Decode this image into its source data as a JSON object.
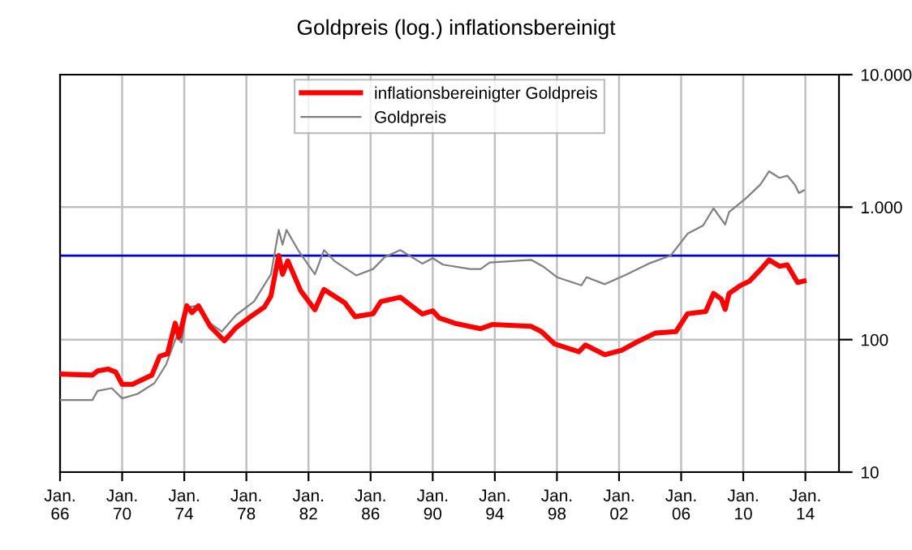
{
  "chart_data": {
    "type": "line",
    "title": "Goldpreis (log.) inflationsbereinigt",
    "series": [
      {
        "name": "inflationsbereinigter Goldpreis",
        "color": "#ff0000",
        "x": [
          "1966-01",
          "1968-02",
          "1968-06",
          "1969-02",
          "1969-08",
          "1970-01",
          "1970-09",
          "1971-12",
          "1972-06",
          "1972-12",
          "1973-06",
          "1973-09",
          "1974-03",
          "1974-07",
          "1974-12",
          "1975-09",
          "1976-08",
          "1977-05",
          "1978-03",
          "1979-03",
          "1979-08",
          "1980-02",
          "1980-05",
          "1980-09",
          "1981-07",
          "1982-06",
          "1983-01",
          "1984-05",
          "1985-01",
          "1986-03",
          "1986-09",
          "1987-12",
          "1989-05",
          "1990-01",
          "1990-06",
          "1991-06",
          "1993-02",
          "1993-11",
          "1996-05",
          "1997-01",
          "1997-11",
          "1999-06",
          "1999-11",
          "2001-02",
          "2002-03",
          "2003-03",
          "2004-05",
          "2005-09",
          "2006-06",
          "2007-08",
          "2008-02",
          "2008-08",
          "2008-11",
          "2009-02",
          "2009-11",
          "2010-06",
          "2011-02",
          "2011-09",
          "2012-05",
          "2012-11",
          "2013-02",
          "2013-07",
          "2013-12"
        ],
        "values": [
          55,
          54,
          58,
          60,
          57,
          46,
          46,
          54,
          75,
          78,
          133,
          104,
          180,
          160,
          180,
          126,
          98,
          123,
          146,
          176,
          213,
          431,
          311,
          393,
          234,
          168,
          239,
          190,
          149,
          157,
          194,
          209,
          156,
          165,
          146,
          133,
          121,
          130,
          126,
          115,
          93,
          81,
          91,
          77,
          83,
          96,
          112,
          115,
          157,
          163,
          223,
          203,
          169,
          223,
          257,
          277,
          335,
          400,
          358,
          367,
          326,
          270,
          277
        ]
      },
      {
        "name": "Goldpreis",
        "color": "#808080",
        "x": [
          "1966-01",
          "1968-02",
          "1968-06",
          "1969-05",
          "1970-01",
          "1971-01",
          "1972-02",
          "1972-11",
          "1973-07",
          "1973-11",
          "1974-03",
          "1974-12",
          "1975-09",
          "1976-06",
          "1977-05",
          "1978-07",
          "1979-08",
          "1980-02",
          "1980-05",
          "1980-08",
          "1981-05",
          "1982-06",
          "1983-01",
          "1983-09",
          "1985-02",
          "1986-03",
          "1986-12",
          "1987-12",
          "1989-05",
          "1990-01",
          "1990-09",
          "1992-06",
          "1993-02",
          "1993-09",
          "1996-05",
          "1997-02",
          "1998-01",
          "1999-08",
          "1999-12",
          "2001-02",
          "2002-07",
          "2003-12",
          "2005-05",
          "2006-06",
          "2007-06",
          "2008-02",
          "2008-11",
          "2009-02",
          "2010-03",
          "2011-02",
          "2011-09",
          "2012-05",
          "2012-11",
          "2013-05",
          "2013-08",
          "2013-12"
        ],
        "values": [
          35,
          35,
          41,
          43,
          36,
          39,
          47,
          65,
          105,
          95,
          176,
          180,
          133,
          115,
          153,
          194,
          311,
          673,
          521,
          673,
          474,
          311,
          474,
          393,
          305,
          341,
          420,
          474,
          375,
          412,
          368,
          341,
          341,
          382,
          400,
          358,
          296,
          257,
          296,
          262,
          311,
          375,
          431,
          630,
          726,
          980,
          739,
          918,
          1163,
          1472,
          1862,
          1664,
          1727,
          1472,
          1278,
          1340
        ]
      }
    ],
    "log": "y",
    "xlim": [
      "1966-01-01",
      "2016-03-01"
    ],
    "ylim": [
      10,
      10000
    ],
    "xticks": [
      {
        "value": "1966-01-01",
        "label": "Jan.\n66"
      },
      {
        "value": "1970-01-01",
        "label": "Jan.\n70"
      },
      {
        "value": "1974-01-01",
        "label": "Jan.\n74"
      },
      {
        "value": "1978-01-01",
        "label": "Jan.\n78"
      },
      {
        "value": "1982-01-01",
        "label": "Jan.\n82"
      },
      {
        "value": "1986-01-01",
        "label": "Jan.\n86"
      },
      {
        "value": "1990-01-01",
        "label": "Jan.\n90"
      },
      {
        "value": "1994-01-01",
        "label": "Jan.\n94"
      },
      {
        "value": "1998-01-01",
        "label": "Jan.\n98"
      },
      {
        "value": "2002-01-01",
        "label": "Jan.\n02"
      },
      {
        "value": "2006-01-01",
        "label": "Jan.\n06"
      },
      {
        "value": "2010-01-01",
        "label": "Jan.\n10"
      },
      {
        "value": "2014-01-01",
        "label": "Jan.\n14"
      }
    ],
    "yticks": [
      {
        "value": 10,
        "label": "10"
      },
      {
        "value": 100,
        "label": "100"
      },
      {
        "value": 1000,
        "label": "1.000"
      },
      {
        "value": 10000,
        "label": "10.000"
      }
    ],
    "ref_lines": [
      {
        "axis": "y",
        "value": 430,
        "color": "#0000cc"
      }
    ],
    "grid": true,
    "legend": "top",
    "marker": "none",
    "line_style": "solid"
  }
}
